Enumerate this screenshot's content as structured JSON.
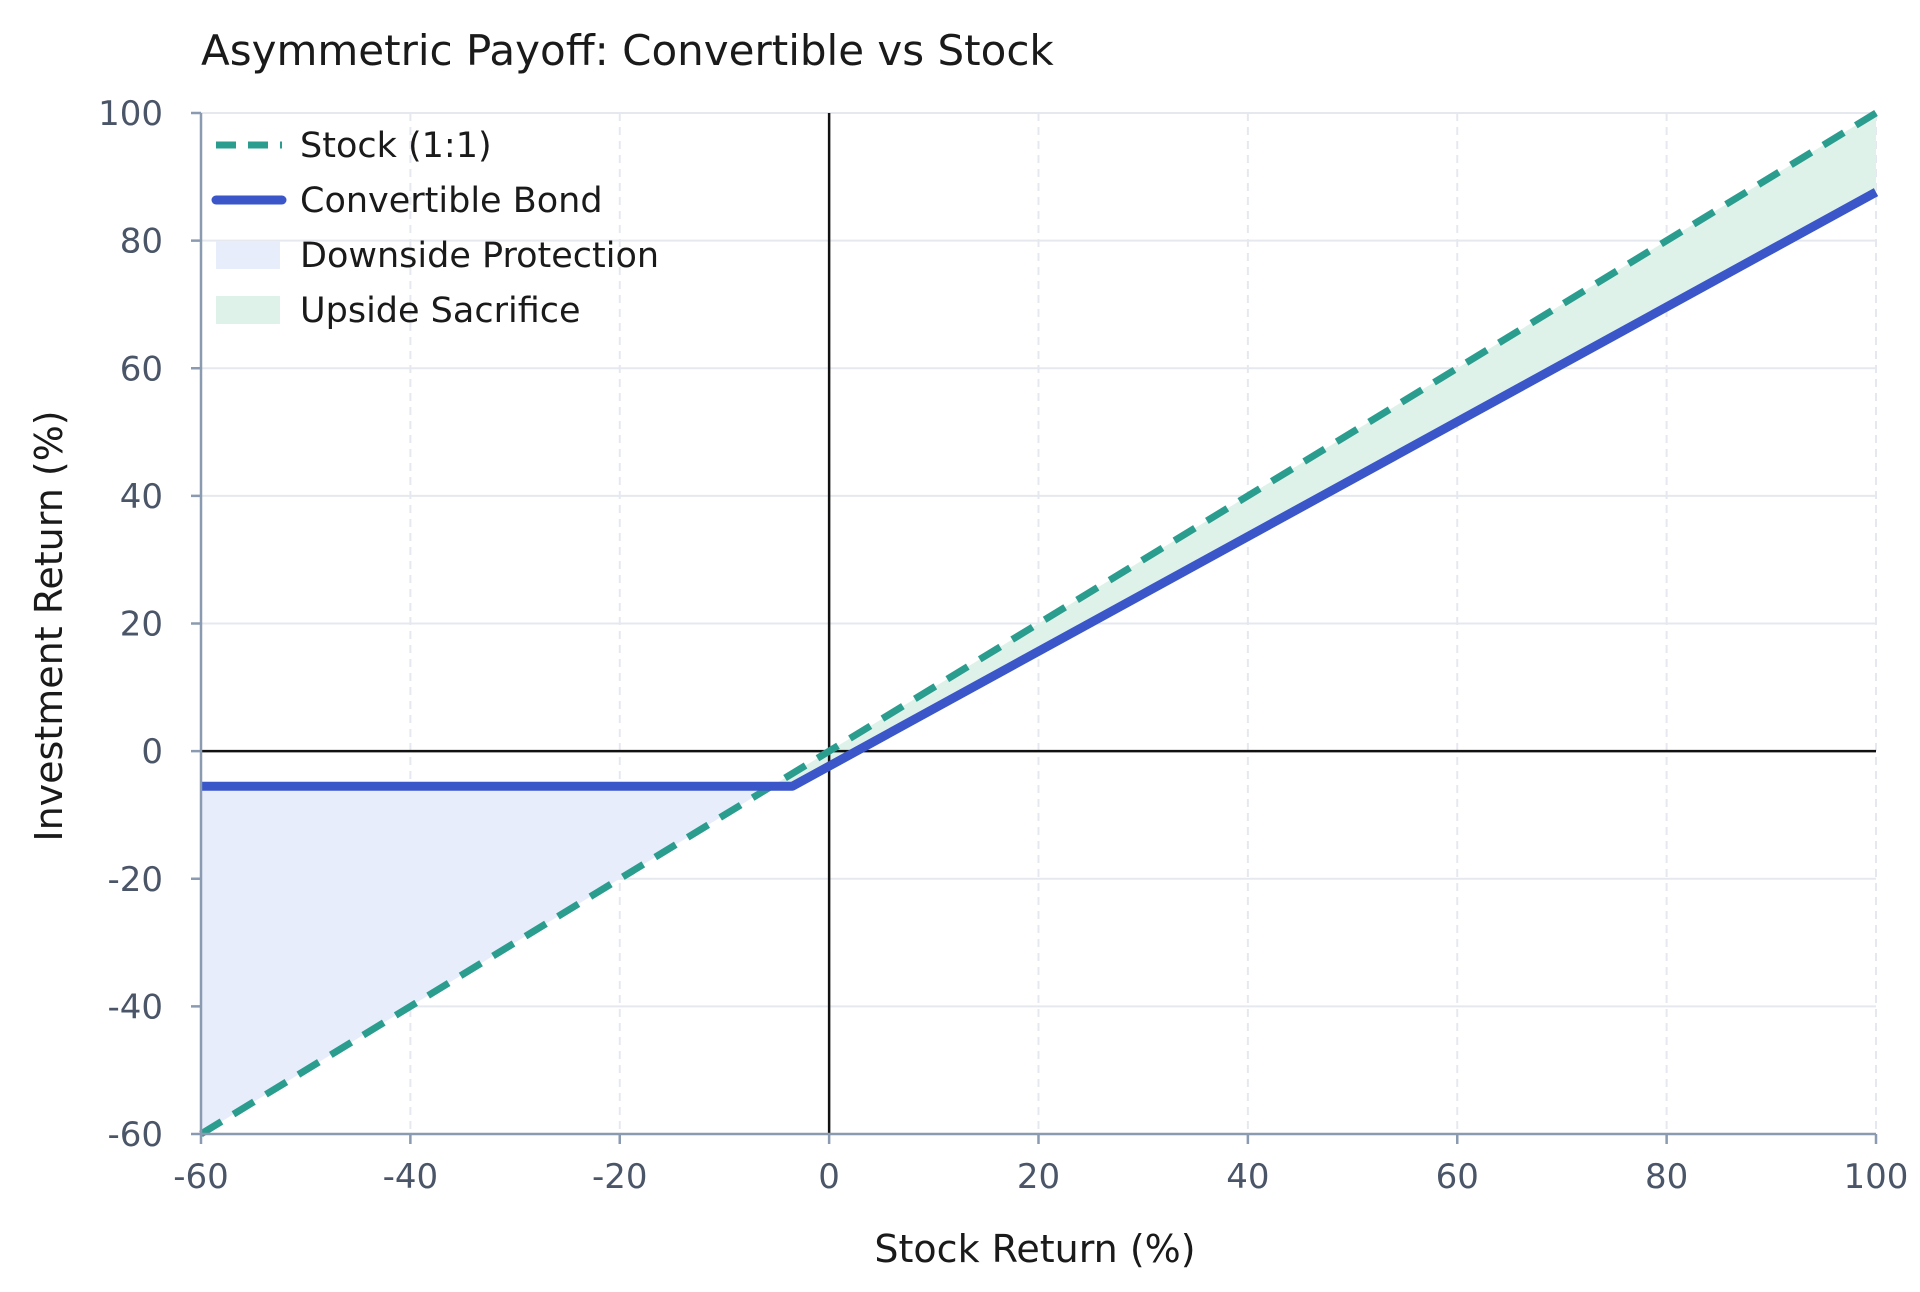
{
  "chart_data": {
    "type": "line",
    "title": "Asymmetric Payoff: Convertible vs Stock",
    "xlabel": "Stock Return (%)",
    "ylabel": "Investment Return (%)",
    "xlim": [
      -60,
      100
    ],
    "ylim": [
      -60,
      100
    ],
    "xticks": [
      -60,
      -40,
      -20,
      0,
      20,
      40,
      60,
      80,
      100
    ],
    "yticks": [
      -60,
      -40,
      -20,
      0,
      20,
      40,
      60,
      80,
      100
    ],
    "grid": true,
    "legend_position": "top-left",
    "reference_lines": {
      "x": 0,
      "y": 0
    },
    "series": [
      {
        "name": "Stock (1:1)",
        "style": "dashed",
        "color": "#2a9d8f",
        "x": [
          -60,
          100
        ],
        "y": [
          -60,
          100
        ]
      },
      {
        "name": "Convertible Bond",
        "style": "solid",
        "color": "#3a56c9",
        "x": [
          -60,
          -3.5,
          100
        ],
        "y": [
          -5.5,
          -5.5,
          87.6
        ]
      }
    ],
    "areas": [
      {
        "name": "Downside Protection",
        "color": "#e8edfb",
        "between": [
          "Convertible Bond",
          "Stock (1:1)"
        ],
        "x_range": [
          -60,
          -5.5
        ]
      },
      {
        "name": "Upside Sacrifice",
        "color": "#def2ea",
        "between": [
          "Stock (1:1)",
          "Convertible Bond"
        ],
        "x_range": [
          -5.5,
          100
        ]
      }
    ]
  }
}
